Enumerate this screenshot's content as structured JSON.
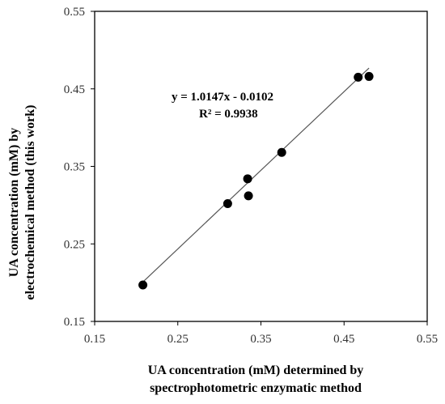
{
  "chart_data": {
    "type": "scatter",
    "xlabel": [
      "UA concentration (mM) determined by",
      "spectrophotometric enzymatic method"
    ],
    "ylabel": [
      "UA concentration (mM) by",
      "electrochemical method (this work)"
    ],
    "xlim": [
      0.15,
      0.55
    ],
    "ylim": [
      0.15,
      0.55
    ],
    "x_ticks": [
      "0.15",
      "0.25",
      "0.35",
      "0.45",
      "0.55"
    ],
    "y_ticks": [
      "0.15",
      "0.25",
      "0.35",
      "0.45",
      "0.55"
    ],
    "points": [
      {
        "x": 0.208,
        "y": 0.197
      },
      {
        "x": 0.31,
        "y": 0.302
      },
      {
        "x": 0.334,
        "y": 0.334
      },
      {
        "x": 0.335,
        "y": 0.312
      },
      {
        "x": 0.375,
        "y": 0.368
      },
      {
        "x": 0.467,
        "y": 0.465
      },
      {
        "x": 0.48,
        "y": 0.466
      }
    ],
    "trendline": {
      "slope": 1.0147,
      "intercept": -0.0102,
      "x_range": [
        0.208,
        0.48
      ]
    },
    "annotations": {
      "equation": "y = 1.0147x - 0.0102",
      "r_squared": "R² = 0.9938"
    },
    "grid": false,
    "legend": "none",
    "marker_color": "#000000",
    "line_color": "#555555"
  }
}
